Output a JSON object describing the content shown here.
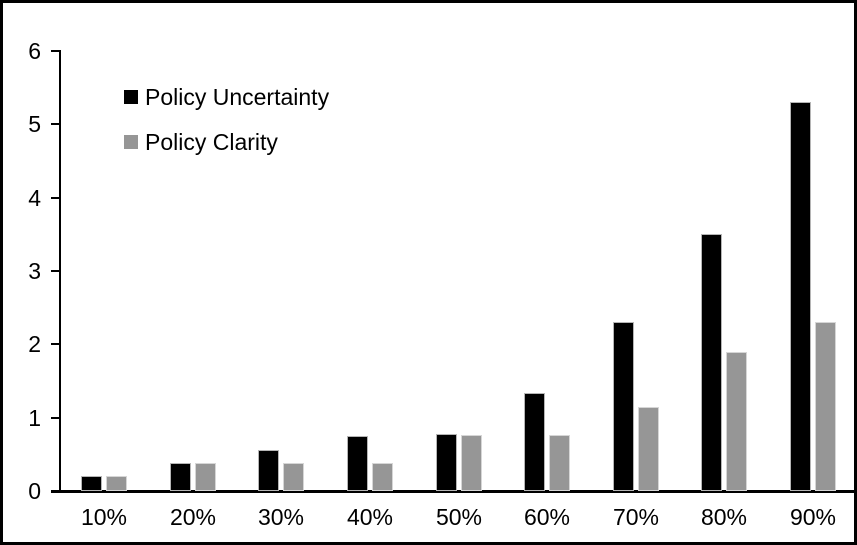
{
  "chart_data": {
    "type": "bar",
    "title": "",
    "xlabel": "",
    "ylabel": "",
    "categories": [
      "10%",
      "20%",
      "30%",
      "40%",
      "50%",
      "60%",
      "70%",
      "80%",
      "90%"
    ],
    "series": [
      {
        "name": "Policy Uncertainty",
        "color": "#000000",
        "values": [
          0.2,
          0.38,
          0.56,
          0.75,
          0.78,
          1.33,
          2.3,
          3.5,
          5.3
        ]
      },
      {
        "name": "Policy Clarity",
        "color": "#969696",
        "values": [
          0.2,
          0.38,
          0.38,
          0.38,
          0.77,
          0.77,
          1.14,
          1.9,
          2.3
        ]
      }
    ],
    "ylim": [
      0,
      6
    ],
    "yticks": [
      0,
      1,
      2,
      3,
      4,
      5,
      6
    ],
    "grid": false,
    "legend_position": "top-left-inside",
    "frame_color": "#000000",
    "background_color": "#ffffff"
  }
}
